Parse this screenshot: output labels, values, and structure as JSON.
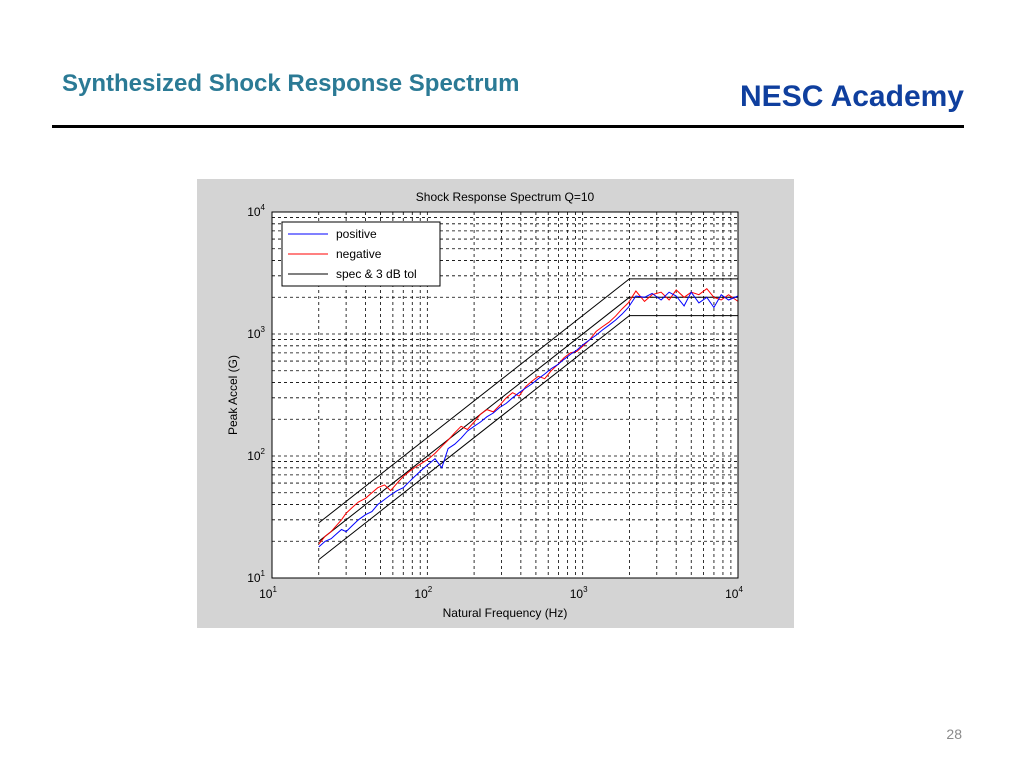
{
  "slide": {
    "title": "Synthesized Shock Response Spectrum",
    "brand": "NESC Academy",
    "page_number": "28",
    "colors": {
      "title": "#2b7a95",
      "brand": "#0f3f9e",
      "rule": "#000000",
      "figure_bg": "#d4d4d4"
    }
  },
  "chart_data": {
    "type": "line",
    "title": "Shock Response Spectrum Q=10",
    "xlabel": "Natural Frequency (Hz)",
    "ylabel": "Peak Accel (G)",
    "xscale": "log",
    "yscale": "log",
    "xlim": [
      10,
      10000
    ],
    "ylim": [
      10,
      10000
    ],
    "grid": true,
    "legend_position": "top-left",
    "x_ticks": [
      {
        "base": "10",
        "exp": "1",
        "value": 10
      },
      {
        "base": "10",
        "exp": "2",
        "value": 100
      },
      {
        "base": "10",
        "exp": "3",
        "value": 1000
      },
      {
        "base": "10",
        "exp": "4",
        "value": 10000
      }
    ],
    "y_ticks": [
      {
        "base": "10",
        "exp": "1",
        "value": 10
      },
      {
        "base": "10",
        "exp": "2",
        "value": 100
      },
      {
        "base": "10",
        "exp": "3",
        "value": 1000
      },
      {
        "base": "10",
        "exp": "4",
        "value": 10000
      }
    ],
    "series": [
      {
        "name": "positive",
        "color": "#0000ff",
        "x": [
          20,
          22,
          24,
          26,
          28,
          30,
          33,
          36,
          40,
          44,
          48,
          53,
          58,
          64,
          70,
          77,
          85,
          93,
          102,
          112,
          124,
          136,
          150,
          165,
          181,
          200,
          220,
          242,
          266,
          292,
          322,
          354,
          390,
          429,
          471,
          518,
          570,
          627,
          690,
          759,
          835,
          918,
          1010,
          1111,
          1222,
          1344,
          1478,
          1626,
          1789,
          1968,
          2200,
          2500,
          2800,
          3200,
          3600,
          4000,
          4500,
          5000,
          5600,
          6300,
          7000,
          7800,
          8700,
          10000
        ],
        "y": [
          18,
          20,
          21,
          23,
          25,
          24,
          27,
          30,
          33,
          35,
          40,
          44,
          48,
          52,
          55,
          62,
          70,
          78,
          86,
          95,
          80,
          115,
          125,
          140,
          160,
          175,
          190,
          210,
          225,
          250,
          270,
          300,
          330,
          360,
          390,
          430,
          470,
          520,
          560,
          620,
          680,
          740,
          820,
          900,
          980,
          1080,
          1180,
          1300,
          1450,
          1650,
          2050,
          2000,
          2150,
          1900,
          2200,
          2050,
          1700,
          2200,
          1800,
          2000,
          1650,
          2100,
          1900,
          2050
        ]
      },
      {
        "name": "negative",
        "color": "#ff0000",
        "x": [
          20,
          22,
          24,
          26,
          28,
          30,
          33,
          36,
          40,
          44,
          48,
          53,
          58,
          64,
          70,
          77,
          85,
          93,
          102,
          112,
          124,
          136,
          150,
          165,
          181,
          200,
          220,
          242,
          266,
          292,
          322,
          354,
          390,
          429,
          471,
          518,
          570,
          627,
          690,
          759,
          835,
          918,
          1010,
          1111,
          1222,
          1344,
          1478,
          1626,
          1789,
          1968,
          2200,
          2500,
          2800,
          3200,
          3600,
          4000,
          4500,
          5000,
          5600,
          6300,
          7000,
          7800,
          8700,
          10000
        ],
        "y": [
          19,
          22,
          24,
          27,
          30,
          34,
          38,
          42,
          45,
          50,
          55,
          58,
          52,
          60,
          68,
          75,
          82,
          88,
          95,
          105,
          120,
          135,
          155,
          175,
          165,
          190,
          220,
          240,
          230,
          260,
          300,
          330,
          310,
          370,
          410,
          450,
          430,
          500,
          560,
          640,
          700,
          720,
          800,
          900,
          1050,
          1150,
          1250,
          1400,
          1600,
          1800,
          2250,
          1850,
          2100,
          2200,
          1900,
          2300,
          2000,
          2200,
          2100,
          2350,
          2000,
          1900,
          2100,
          1850
        ]
      },
      {
        "name": "spec & 3 dB tol",
        "color": "#000000",
        "x": [
          20,
          2000,
          10000
        ],
        "y": [
          20,
          2000,
          2000
        ]
      },
      {
        "color": "#000000",
        "x": [
          20,
          2000,
          10000
        ],
        "y": [
          28.3,
          2830,
          2830
        ]
      },
      {
        "color": "#000000",
        "x": [
          20,
          2000,
          10000
        ],
        "y": [
          14.15,
          1415,
          1415
        ]
      }
    ]
  }
}
